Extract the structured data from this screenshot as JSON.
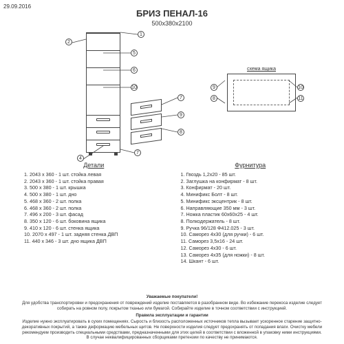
{
  "meta": {
    "date": "29.09.2016"
  },
  "title": "БРИЗ ПЕНАЛ-16",
  "dimensions": "500х380х2100",
  "scheme_label": "схема ящика",
  "details": {
    "header": "Детали",
    "items": [
      "1. 2043 х 360 - 1 шт. стойка левая",
      "2. 2043 х 360 - 1 шт. стойка правая",
      "3. 500 х 380 - 1 шт. крышка",
      "4. 500 х 380 - 1 шт. дно",
      "5. 468 х 360 - 2 шт. полка",
      "6. 468 х 360 - 2 шт. полка",
      "7. 496 х 200 - 3 шт. фасад",
      "8. 350 х 120 - 6 шт. боковина ящика",
      "9. 410 х 120 - 6 шт. стенка ящика",
      "10. 2070 х 497 - 1 шт. задняя стенка ДВП",
      "11. 440 х 346 - 3 шт. дно ящика ДВП"
    ]
  },
  "hardware": {
    "header": "Фурнитура",
    "items": [
      "1. Гвоздь 1,2х20 - 85 шт.",
      "2. Заглушка на конфирмат - 8 шт.",
      "3. Конфирмат - 20 шт.",
      "4. Минификс Болт - 8 шт.",
      "5. Минификс эксцентрик - 8 шт.",
      "6. Направляющие 350 мм - 3 шт.",
      "7. Ножка пластик 60х60х25 - 4 шт.",
      "8. Полкодержатель - 8 шт.",
      "9. Ручка 96/128 Ф412.025 - 3 шт.",
      "10. Саморез 4х30 (для ручки) - 6 шт.",
      "11. Саморез 3,5х16 - 24 шт.",
      "12. Саморез 4х30 - 6 шт.",
      "13. Саморез 4х35 (для ножки) - 8 шт.",
      "14. Шкант - 6 шт."
    ]
  },
  "footer": {
    "h1": "Уважаемые покупатели!",
    "p1": "Для удобства транспортировки и предохранения от повреждений изделие поставляется в разобранном виде. Во избежание перекоса изделие следует собирать на ровном полу, покрытом тканью или бумагой. Собирайте изделие в точном соответствии с инструкцией.",
    "h2": "Правила эксплуатации и гарантии",
    "p2": "Изделие нужно эксплуатировать в сухих помещениях. Сырость и близость расположенных источников тепла вызывает ускоренное старение защитно-декоративных покрытий, а также деформацию мебельных щитов. Не поверхности изделия следует предохранять от попадания влаги. Очистку мебели рекомендуем производить специальными средствами, предназначенными для этих целей в соответствии с вложенной в упаковку ними инструкциями.",
    "p3": "В случае неквалифицированных сборщиками претензии по качеству не принимаются."
  },
  "callouts_left": [
    "1",
    "2",
    "5",
    "6",
    "10",
    "4",
    "7"
  ],
  "callouts_right": [
    "3",
    "7",
    "9",
    "8",
    "11"
  ],
  "scheme_callouts": [
    "9",
    "10",
    "8",
    "11"
  ]
}
